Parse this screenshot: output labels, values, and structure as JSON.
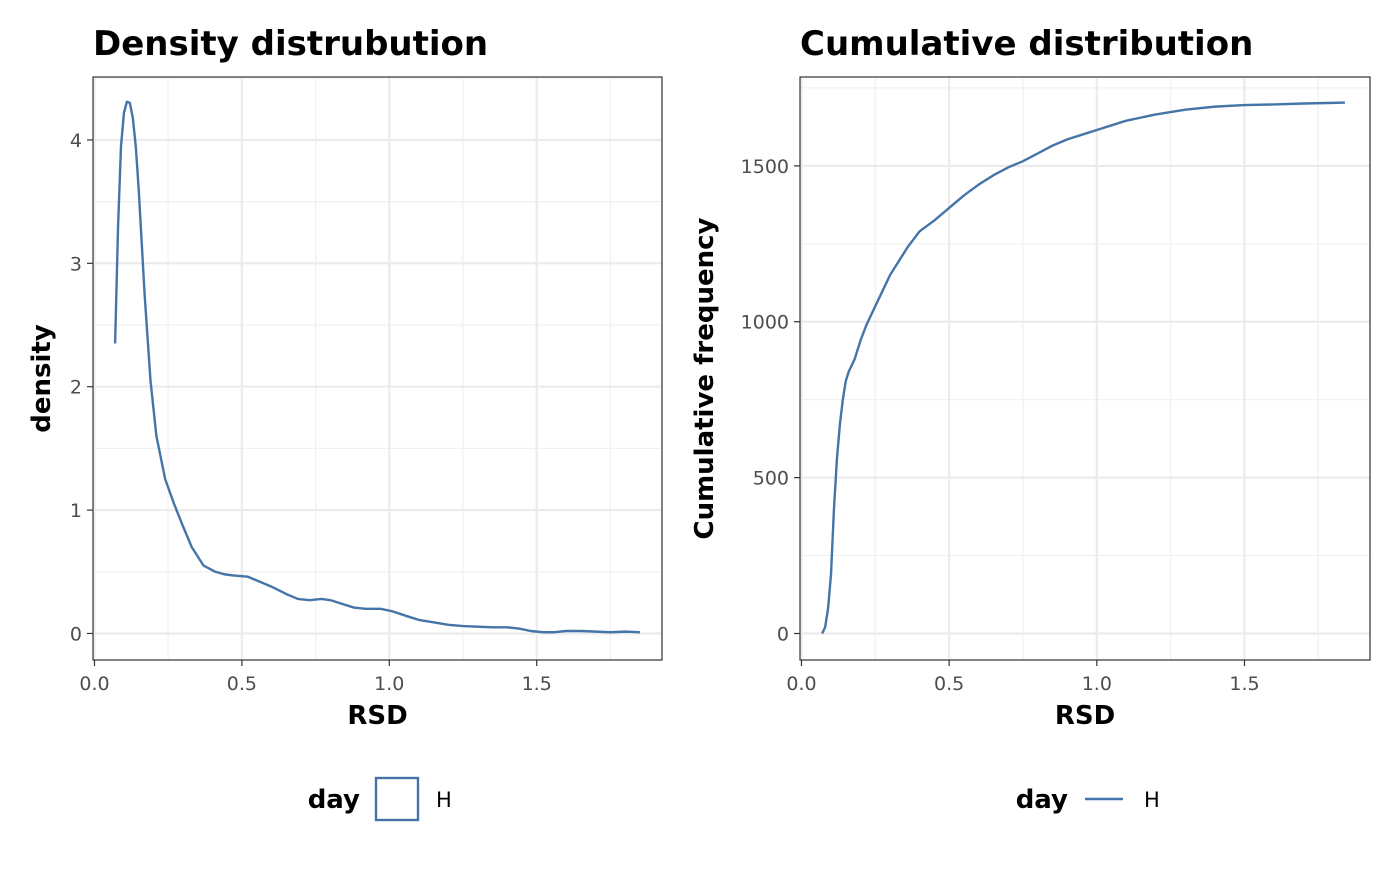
{
  "chart_data": [
    {
      "type": "line",
      "title": "Density distrubution",
      "xlabel": "RSD",
      "ylabel": "density",
      "xlim": [
        -0.005,
        1.925
      ],
      "ylim": [
        -0.215,
        4.51
      ],
      "xticks": [
        0.0,
        0.5,
        1.0,
        1.5
      ],
      "xtick_labels": [
        "0.0",
        "0.5",
        "1.0",
        "1.5"
      ],
      "yticks": [
        0,
        1,
        2,
        3,
        4
      ],
      "ytick_labels": [
        "0",
        "1",
        "2",
        "3",
        "4"
      ],
      "grid": true,
      "legend": {
        "title": "day",
        "placement": "bottom",
        "key": "box"
      },
      "series": [
        {
          "name": "H",
          "color": "#4575a8",
          "x": [
            0.07,
            0.08,
            0.09,
            0.1,
            0.11,
            0.12,
            0.13,
            0.14,
            0.15,
            0.17,
            0.19,
            0.21,
            0.24,
            0.27,
            0.3,
            0.33,
            0.37,
            0.41,
            0.44,
            0.47,
            0.52,
            0.56,
            0.6,
            0.65,
            0.69,
            0.73,
            0.77,
            0.8,
            0.84,
            0.88,
            0.92,
            0.97,
            1.01,
            1.06,
            1.1,
            1.15,
            1.2,
            1.25,
            1.3,
            1.35,
            1.4,
            1.44,
            1.48,
            1.52,
            1.56,
            1.6,
            1.65,
            1.7,
            1.75,
            1.8,
            1.85
          ],
          "y": [
            2.35,
            3.3,
            3.95,
            4.22,
            4.31,
            4.3,
            4.18,
            3.95,
            3.6,
            2.75,
            2.05,
            1.6,
            1.25,
            1.05,
            0.87,
            0.7,
            0.55,
            0.5,
            0.48,
            0.47,
            0.46,
            0.42,
            0.38,
            0.32,
            0.28,
            0.27,
            0.28,
            0.27,
            0.24,
            0.21,
            0.2,
            0.2,
            0.18,
            0.14,
            0.11,
            0.09,
            0.07,
            0.06,
            0.055,
            0.05,
            0.05,
            0.04,
            0.02,
            0.01,
            0.01,
            0.02,
            0.02,
            0.015,
            0.01,
            0.015,
            0.01
          ]
        }
      ]
    },
    {
      "type": "line",
      "title": "Cumulative distribution",
      "xlabel": "RSD",
      "ylabel": "Cumulative frequency",
      "xlim": [
        -0.005,
        1.925
      ],
      "ylim": [
        -85,
        1785
      ],
      "xticks": [
        0.0,
        0.5,
        1.0,
        1.5
      ],
      "xtick_labels": [
        "0.0",
        "0.5",
        "1.0",
        "1.5"
      ],
      "yticks": [
        0,
        500,
        1000,
        1500
      ],
      "ytick_labels": [
        "0",
        "500",
        "1000",
        "1500"
      ],
      "grid": true,
      "legend": {
        "title": "day",
        "placement": "bottom",
        "key": "line"
      },
      "series": [
        {
          "name": "H",
          "color": "#4575a8",
          "x": [
            0.07,
            0.08,
            0.09,
            0.1,
            0.11,
            0.12,
            0.13,
            0.14,
            0.15,
            0.16,
            0.18,
            0.2,
            0.22,
            0.25,
            0.28,
            0.3,
            0.33,
            0.36,
            0.4,
            0.45,
            0.5,
            0.55,
            0.6,
            0.65,
            0.7,
            0.75,
            0.8,
            0.85,
            0.9,
            0.95,
            1.0,
            1.05,
            1.1,
            1.2,
            1.3,
            1.4,
            1.5,
            1.6,
            1.7,
            1.8,
            1.84
          ],
          "y": [
            0,
            20,
            80,
            190,
            400,
            560,
            670,
            750,
            810,
            840,
            880,
            940,
            990,
            1050,
            1110,
            1150,
            1195,
            1240,
            1290,
            1325,
            1365,
            1405,
            1440,
            1470,
            1495,
            1515,
            1540,
            1565,
            1585,
            1600,
            1615,
            1630,
            1645,
            1665,
            1680,
            1690,
            1695,
            1697,
            1700,
            1702,
            1703
          ]
        }
      ]
    }
  ]
}
